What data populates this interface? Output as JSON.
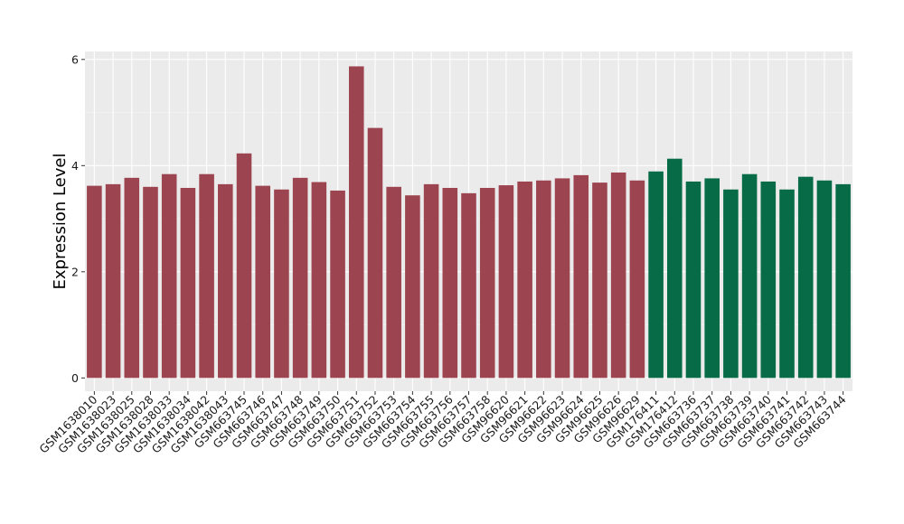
{
  "colors": {
    "panel_background": "#ebebeb",
    "grid_major": "#ffffff",
    "grid_minor": "#f5f5f5",
    "group_1": "#9c4551",
    "group_2": "#066b46"
  },
  "chart_data": {
    "type": "bar",
    "title": "",
    "xlabel": "",
    "ylabel": "Expression Level",
    "ylim": [
      -0.25,
      6.15
    ],
    "yticks": [
      0,
      2,
      4,
      6
    ],
    "grid": true,
    "legend": "none",
    "categories": [
      "GSM1638010",
      "GSM1638023",
      "GSM1638025",
      "GSM1638028",
      "GSM1638033",
      "GSM1638034",
      "GSM1638042",
      "GSM1638043",
      "GSM663745",
      "GSM663746",
      "GSM663747",
      "GSM663748",
      "GSM663749",
      "GSM663750",
      "GSM663751",
      "GSM663752",
      "GSM663753",
      "GSM663754",
      "GSM663755",
      "GSM663756",
      "GSM663757",
      "GSM663758",
      "GSM96620",
      "GSM96621",
      "GSM96622",
      "GSM96623",
      "GSM96624",
      "GSM96625",
      "GSM96626",
      "GSM96629",
      "GSM176411",
      "GSM176412",
      "GSM663736",
      "GSM663737",
      "GSM663738",
      "GSM663739",
      "GSM663740",
      "GSM663741",
      "GSM663742",
      "GSM663743",
      "GSM663744"
    ],
    "values": [
      3.62,
      3.65,
      3.77,
      3.6,
      3.84,
      3.58,
      3.84,
      3.65,
      4.23,
      3.62,
      3.55,
      3.77,
      3.69,
      3.53,
      5.87,
      4.71,
      3.6,
      3.44,
      3.65,
      3.58,
      3.48,
      3.58,
      3.63,
      3.7,
      3.72,
      3.76,
      3.82,
      3.68,
      3.87,
      3.72,
      3.89,
      4.13,
      3.7,
      3.76,
      3.55,
      3.84,
      3.7,
      3.55,
      3.79,
      3.72,
      3.65
    ],
    "bar_groups": [
      0,
      0,
      0,
      0,
      0,
      0,
      0,
      0,
      0,
      0,
      0,
      0,
      0,
      0,
      0,
      0,
      0,
      0,
      0,
      0,
      0,
      0,
      0,
      0,
      0,
      0,
      0,
      0,
      0,
      0,
      1,
      1,
      1,
      1,
      1,
      1,
      1,
      1,
      1,
      1,
      1
    ]
  }
}
